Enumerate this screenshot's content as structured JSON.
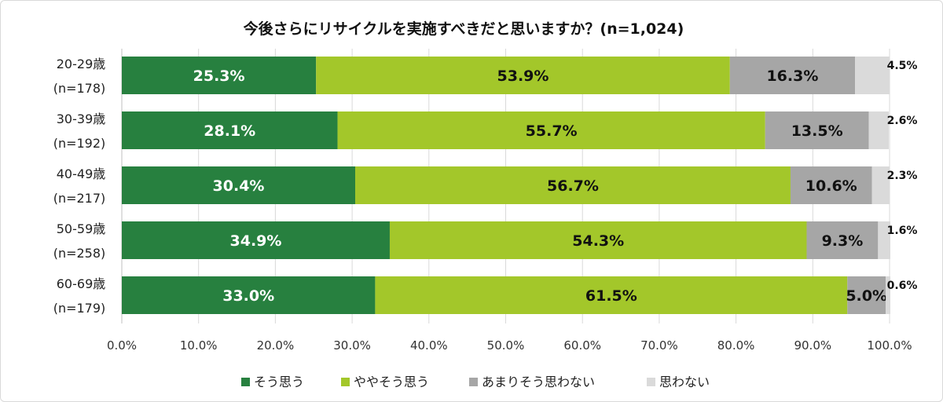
{
  "chart_data": {
    "type": "bar",
    "orientation": "horizontal",
    "stacked": true,
    "title": "今後さらにリサイクルを実施すべきだと思いますか？(n=1,024)",
    "categories": [
      [
        "20-29歳",
        "(n=178)"
      ],
      [
        "30-39歳",
        "(n=192)"
      ],
      [
        "40-49歳",
        "(n=217)"
      ],
      [
        "50-59歳",
        "(n=258)"
      ],
      [
        "60-69歳",
        "(n=179)"
      ]
    ],
    "series": [
      {
        "name": "そう思う",
        "color": "#27803f",
        "label_color": "#ffffff",
        "values": [
          25.3,
          28.1,
          30.4,
          34.9,
          33.0
        ]
      },
      {
        "name": "ややそう思う",
        "color": "#a3c72a",
        "label_color": "#111111",
        "values": [
          53.9,
          55.7,
          56.7,
          54.3,
          61.5
        ]
      },
      {
        "name": "あまりそう思わない",
        "color": "#a6a6a6",
        "label_color": "#111111",
        "values": [
          16.3,
          13.5,
          10.6,
          9.3,
          5.0
        ]
      },
      {
        "name": "思わない",
        "color": "#dadada",
        "label_color": "#111111",
        "values": [
          4.5,
          2.6,
          2.3,
          1.6,
          0.6
        ]
      }
    ],
    "value_labels": [
      [
        "25.3%",
        "53.9%",
        "16.3%",
        "4.5%"
      ],
      [
        "28.1%",
        "55.7%",
        "13.5%",
        "2.6%"
      ],
      [
        "30.4%",
        "56.7%",
        "10.6%",
        "2.3%"
      ],
      [
        "34.9%",
        "54.3%",
        "9.3%",
        "1.6%"
      ],
      [
        "33.0%",
        "61.5%",
        "5.0%",
        "0.6%"
      ]
    ],
    "x_ticks": [
      "0.0%",
      "10.0%",
      "20.0%",
      "30.0%",
      "40.0%",
      "50.0%",
      "60.0%",
      "70.0%",
      "80.0%",
      "90.0%",
      "100.0%"
    ],
    "xlim": [
      0,
      100
    ],
    "xlabel": "",
    "ylabel": "",
    "grid": true,
    "legend_position": "bottom"
  }
}
